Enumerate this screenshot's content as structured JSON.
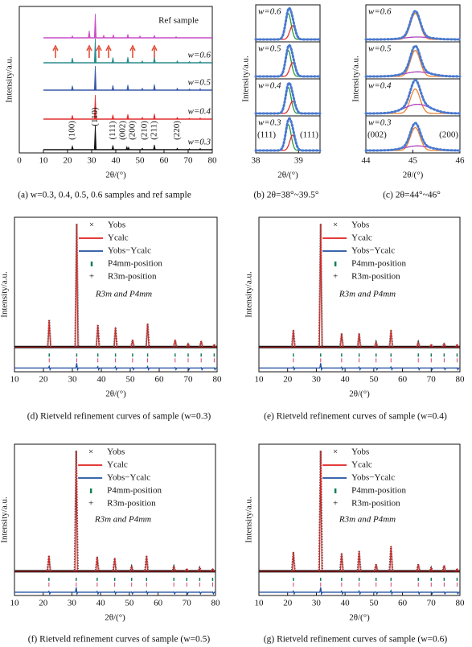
{
  "chart_data": [
    {
      "type": "xrd-stack",
      "caption": "(a) w=0.3, 0.4, 0.5, 0.6 samples and ref sample",
      "x_label": "2θ/(°)",
      "y_label": "Intensity/a.u.",
      "xlim": [
        0,
        80
      ],
      "xticks": [
        0,
        10,
        20,
        30,
        40,
        50,
        60,
        70,
        80
      ],
      "series": [
        {
          "name": "Ref sample",
          "color": "#c84fc8",
          "x": [
            22,
            29,
            31.5,
            35,
            39,
            45,
            50,
            56,
            65
          ],
          "values": [
            8,
            30,
            100,
            10,
            12,
            14,
            8,
            10,
            5
          ]
        },
        {
          "name": "w=0.6",
          "color": "#2a8c8c",
          "x": [
            22,
            31.5,
            38.8,
            45,
            51,
            56,
            65.5,
            70.5,
            75
          ],
          "values": [
            20,
            100,
            22,
            24,
            8,
            26,
            8,
            5,
            6
          ]
        },
        {
          "name": "w=0.5",
          "color": "#3a5aa8",
          "x": [
            22,
            31.5,
            38.8,
            45,
            51,
            56,
            65.5,
            70.5,
            75
          ],
          "values": [
            18,
            100,
            20,
            22,
            8,
            24,
            8,
            5,
            6
          ]
        },
        {
          "name": "w=0.4",
          "color": "#e03030",
          "x": [
            22,
            31.5,
            38.8,
            45,
            51,
            56,
            65.5,
            70.5,
            75
          ],
          "values": [
            16,
            100,
            18,
            20,
            7,
            22,
            7,
            4,
            5
          ]
        },
        {
          "name": "w=0.3",
          "color": "#111111",
          "x": [
            22,
            31.5,
            38.8,
            44.6,
            45.3,
            51,
            56,
            65.5,
            70.5,
            75
          ],
          "values": [
            15,
            100,
            18,
            12,
            10,
            6,
            20,
            6,
            4,
            5
          ]
        }
      ],
      "peak_labels": [
        "(100)",
        "(110)",
        "(111)",
        "(002)",
        "(200)",
        "(210)",
        "(211)",
        "(220)"
      ]
    },
    {
      "type": "peak-fit",
      "caption": "(b) 2θ=38°~39.5°",
      "x_label": "2θ/(°)",
      "y_label": "Intensity/a.u.",
      "xlim": [
        38,
        39.5
      ],
      "xticks": [
        38,
        39
      ],
      "component_colors": [
        "#2a9a3a",
        "#e03030"
      ],
      "fit_color": "#1f3f8f",
      "subplots": [
        {
          "label": "w=0.6",
          "x": [
            38.76,
            38.86
          ],
          "values": [
            0.85,
            0.45
          ]
        },
        {
          "label": "w=0.5",
          "x": [
            38.76,
            38.86
          ],
          "values": [
            0.85,
            0.45
          ]
        },
        {
          "label": "w=0.4",
          "x": [
            38.76,
            38.86
          ],
          "values": [
            0.85,
            0.4
          ]
        },
        {
          "label": "w=0.3",
          "x": [
            38.76,
            38.86
          ],
          "values": [
            0.85,
            0.5
          ]
        }
      ],
      "peak_labels": [
        "(111)",
        "(111)"
      ]
    },
    {
      "type": "peak-fit",
      "caption": "(c) 2θ=44°~46°",
      "x_label": "2θ/(°)",
      "y_label": "Intensity/a.u.",
      "xlim": [
        44,
        46
      ],
      "xticks": [
        44,
        45,
        46
      ],
      "component_colors": [
        "#f08030",
        "#b040c0"
      ],
      "fit_color": "#1f3f8f",
      "subplots": [
        {
          "label": "w=0.6",
          "x": [
            45.05,
            45.1
          ],
          "values": [
            0.85,
            0.08
          ]
        },
        {
          "label": "w=0.5",
          "x": [
            45.05,
            45.1
          ],
          "values": [
            0.85,
            0.15
          ]
        },
        {
          "label": "w=0.4",
          "x": [
            45.05,
            45.1
          ],
          "values": [
            0.8,
            0.3
          ]
        },
        {
          "label": "w=0.3",
          "x": [
            45.05,
            45.1
          ],
          "values": [
            0.75,
            0.15
          ]
        }
      ],
      "peak_labels": [
        "(002)",
        "(200)"
      ]
    },
    {
      "type": "rietveld",
      "caption": "(d) Rietveld refinement curves of sample (w=0.3)",
      "x_label": "2θ/(°)",
      "y_label": "Intensity/a.u.",
      "annotation": "R3m and P4mm",
      "xlim": [
        10,
        80
      ],
      "xticks": [
        10,
        20,
        30,
        40,
        50,
        60,
        70,
        80
      ],
      "series": [
        {
          "name": "Yobs",
          "color": "#666666"
        },
        {
          "name": "Ycalc",
          "color": "#e02020"
        },
        {
          "name": "Yobs−Ycalc",
          "color": "#2050a0"
        },
        {
          "name": "P4mm-position",
          "color": "#108050"
        },
        {
          "name": "R3m-position",
          "color": "#d04070"
        }
      ],
      "peaks": {
        "x": [
          22,
          31.5,
          38.8,
          44.9,
          50.8,
          56,
          65.5,
          70,
          74.5,
          79
        ],
        "values": [
          22,
          100,
          18,
          16,
          6,
          19,
          6,
          3,
          5,
          2
        ]
      }
    },
    {
      "type": "rietveld",
      "caption": "(e) Rietveld refinement curves of sample (w=0.4)",
      "x_label": "2θ/(°)",
      "y_label": "Intensity/a.u.",
      "annotation": "R3m and P4mm",
      "xlim": [
        10,
        80
      ],
      "xticks": [
        10,
        20,
        30,
        40,
        50,
        60,
        70,
        80
      ],
      "series": [
        {
          "name": "Yobs",
          "color": "#666666"
        },
        {
          "name": "Ycalc",
          "color": "#e02020"
        },
        {
          "name": "Yobs−Ycalc",
          "color": "#2050a0"
        },
        {
          "name": "P4mm-position",
          "color": "#108050"
        },
        {
          "name": "R3m-position",
          "color": "#d04070"
        }
      ],
      "peaks": {
        "x": [
          22,
          31.5,
          38.8,
          44.9,
          50.8,
          56,
          65.5,
          70,
          74.5,
          79
        ],
        "values": [
          14,
          100,
          11,
          11,
          4,
          14,
          4,
          2,
          3,
          2
        ]
      }
    },
    {
      "type": "rietveld",
      "caption": "(f) Rietveld refinement curves of sample (w=0.5)",
      "x_label": "2θ/(°)",
      "y_label": "Intensity/a.u.",
      "annotation": "R3m and P4mm",
      "xlim": [
        10,
        80
      ],
      "xticks": [
        10,
        20,
        30,
        40,
        50,
        60,
        70,
        80
      ],
      "series": [
        {
          "name": "Yobs",
          "color": "#666666"
        },
        {
          "name": "Ycalc",
          "color": "#e02020"
        },
        {
          "name": "Yobs−Ycalc",
          "color": "#2050a0"
        },
        {
          "name": "P4mm-position",
          "color": "#108050"
        },
        {
          "name": "R3m-position",
          "color": "#d04070"
        }
      ],
      "peaks": {
        "x": [
          22,
          31.5,
          38.8,
          44.9,
          50.8,
          56,
          65.5,
          70,
          74.5,
          79
        ],
        "values": [
          13,
          100,
          12,
          11,
          4,
          13,
          4,
          2,
          3,
          2
        ]
      }
    },
    {
      "type": "rietveld",
      "caption": "(g) Rietveld refinement curves of sample (w=0.6)",
      "x_label": "2θ/(°)",
      "y_label": "Intensity/a.u.",
      "annotation": "R3m and P4mm",
      "xlim": [
        10,
        80
      ],
      "xticks": [
        10,
        20,
        30,
        40,
        50,
        60,
        70,
        80
      ],
      "series": [
        {
          "name": "Yobs",
          "color": "#666666"
        },
        {
          "name": "Ycalc",
          "color": "#e02020"
        },
        {
          "name": "Yobs−Ycalc",
          "color": "#2050a0"
        },
        {
          "name": "P4mm-position",
          "color": "#108050"
        },
        {
          "name": "R3m-position",
          "color": "#d04070"
        }
      ],
      "peaks": {
        "x": [
          22,
          31.5,
          38.8,
          44.9,
          50.8,
          56,
          65.5,
          70,
          74.5,
          79
        ],
        "values": [
          16,
          100,
          15,
          17,
          6,
          21,
          6,
          3,
          5,
          2
        ]
      }
    }
  ]
}
